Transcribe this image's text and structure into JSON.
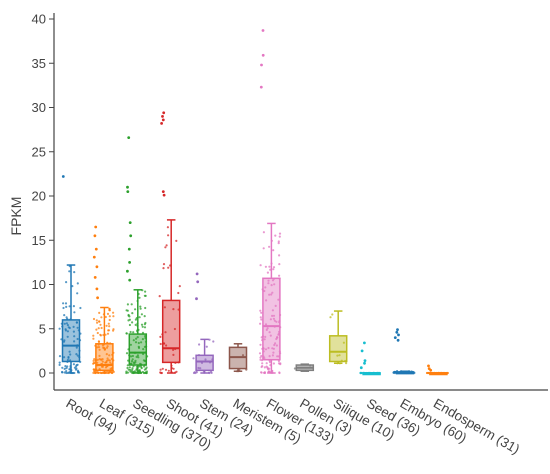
{
  "chart_data": {
    "type": "box",
    "ylabel": "FPKM",
    "xlabel": "",
    "ylim": [
      0,
      40
    ],
    "yticks": [
      0,
      5,
      10,
      15,
      20,
      25,
      30,
      35,
      40
    ],
    "grid": false,
    "legend": "none",
    "categories": [
      {
        "label": "Root (94)",
        "color": "#1f77b4",
        "stats": {
          "min": 0,
          "q1": 1.3,
          "median": 3.1,
          "q3": 6.0,
          "max": 12.2
        },
        "outliers": [
          22.2
        ],
        "points": {
          "count": 94,
          "max": 12.2
        }
      },
      {
        "label": "Leaf (315)",
        "color": "#ff7f0e",
        "stats": {
          "min": 0,
          "q1": 0.3,
          "median": 0.9,
          "q3": 3.3,
          "max": 7.4
        },
        "outliers": [
          8.5,
          9.5,
          10.8,
          12.0,
          13.1,
          14.0,
          15.5,
          16.5
        ],
        "points": {
          "count": 315,
          "max": 7.4
        }
      },
      {
        "label": "Seedling (370)",
        "color": "#2ca02c",
        "stats": {
          "min": 0,
          "q1": 0.9,
          "median": 2.3,
          "q3": 4.4,
          "max": 9.4
        },
        "outliers": [
          10.5,
          11.5,
          12.5,
          14.0,
          15.5,
          17.0,
          20.5,
          21.0,
          26.6
        ],
        "points": {
          "count": 370,
          "max": 9.4
        }
      },
      {
        "label": "Shoot (41)",
        "color": "#d62728",
        "stats": {
          "min": 0,
          "q1": 1.2,
          "median": 2.8,
          "q3": 8.2,
          "max": 17.3
        },
        "outliers": [
          20.1,
          20.5,
          28.2,
          28.6,
          29.0,
          29.4
        ],
        "points": {
          "count": 41,
          "max": 17.3
        }
      },
      {
        "label": "Stem (24)",
        "color": "#9467bd",
        "stats": {
          "min": 0,
          "q1": 0.3,
          "median": 1.3,
          "q3": 2.0,
          "max": 3.8
        },
        "outliers": [
          8.4,
          10.3,
          11.2
        ],
        "points": {
          "count": 24,
          "max": 3.8
        }
      },
      {
        "label": "Meristem (5)",
        "color": "#8c564b",
        "stats": {
          "min": 0.2,
          "q1": 0.5,
          "median": 1.8,
          "q3": 2.9,
          "max": 3.3
        },
        "outliers": [],
        "points": {
          "count": 5,
          "max": 3.3
        }
      },
      {
        "label": "Flower (133)",
        "color": "#e377c2",
        "stats": {
          "min": 0,
          "q1": 1.5,
          "median": 5.3,
          "q3": 10.7,
          "max": 16.9
        },
        "outliers": [
          32.3,
          34.8,
          35.9,
          38.7
        ],
        "points": {
          "count": 133,
          "max": 16.9
        }
      },
      {
        "label": "Pollen (3)",
        "color": "#7f7f7f",
        "stats": {
          "min": 0.2,
          "q1": 0.3,
          "median": 0.6,
          "q3": 0.9,
          "max": 1.0
        },
        "outliers": [],
        "points": {
          "count": 3,
          "max": 1.0
        }
      },
      {
        "label": "Silique (10)",
        "color": "#bcbd22",
        "stats": {
          "min": 1.1,
          "q1": 1.3,
          "median": 2.4,
          "q3": 4.2,
          "max": 7.0
        },
        "outliers": [],
        "points": {
          "count": 10,
          "max": 7.0
        }
      },
      {
        "label": "Seed (36)",
        "color": "#17becf",
        "stats": {
          "min": 0,
          "q1": 0,
          "median": 0,
          "q3": 0,
          "max": 0
        },
        "outliers": [
          0.6,
          1.1,
          1.4,
          2.5,
          3.4
        ],
        "points": {
          "count": 36,
          "max": 0
        }
      },
      {
        "label": "Embryo (60)",
        "color": "#1f77b4",
        "stats": {
          "min": 0,
          "q1": 0,
          "median": 0,
          "q3": 0.1,
          "max": 0.2
        },
        "outliers": [
          3.7,
          4.0,
          4.3,
          4.6,
          4.9
        ],
        "points": {
          "count": 60,
          "max": 0.2
        }
      },
      {
        "label": "Endosperm (31)",
        "color": "#ff7f0e",
        "stats": {
          "min": 0,
          "q1": 0,
          "median": 0,
          "q3": 0,
          "max": 0
        },
        "outliers": [
          0.3,
          0.5,
          0.8
        ],
        "points": {
          "count": 31,
          "max": 0
        }
      }
    ]
  }
}
